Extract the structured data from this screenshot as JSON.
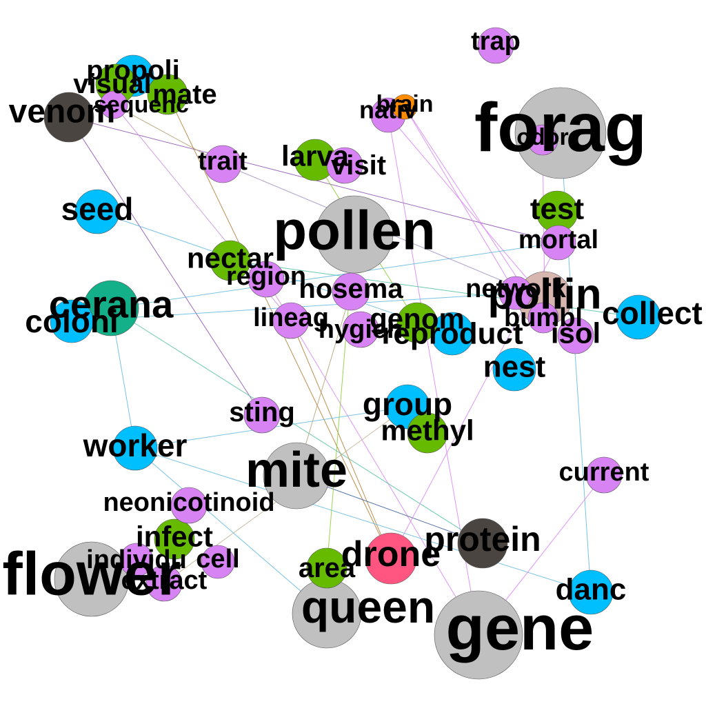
{
  "title": "",
  "palette": {
    "gray": "#c0c0c0",
    "pink": "#d883f3",
    "blue": "#00bfff",
    "green": "#66bb00",
    "dark": "#4a4540",
    "teal": "#14b08a",
    "orange": "#ff8c00",
    "rose": "#ff5580",
    "mauve": "#d8b6b0"
  },
  "nodes": [
    {
      "id": "forag",
      "label": "forag",
      "color": "gray"
    },
    {
      "id": "pollen",
      "label": "pollen",
      "color": "gray"
    },
    {
      "id": "mite",
      "label": "mite",
      "color": "gray"
    },
    {
      "id": "flower",
      "label": "flower",
      "color": "gray"
    },
    {
      "id": "queen",
      "label": "queen",
      "color": "gray"
    },
    {
      "id": "gene",
      "label": "gene",
      "color": "gray"
    },
    {
      "id": "venom",
      "label": "venom",
      "color": "dark"
    },
    {
      "id": "protein",
      "label": "protein",
      "color": "dark"
    },
    {
      "id": "drone",
      "label": "drone",
      "color": "rose"
    },
    {
      "id": "cerana",
      "label": "cerana",
      "color": "teal"
    },
    {
      "id": "brain",
      "label": "brain",
      "color": "orange"
    },
    {
      "id": "pollin",
      "label": "pollin",
      "color": "mauve"
    },
    {
      "id": "propoli",
      "label": "propoli",
      "color": "blue"
    },
    {
      "id": "visual",
      "label": "visual",
      "color": "green"
    },
    {
      "id": "mate",
      "label": "mate",
      "color": "green"
    },
    {
      "id": "sequenc",
      "label": "sequenc",
      "color": "pink"
    },
    {
      "id": "trap",
      "label": "trap",
      "color": "pink"
    },
    {
      "id": "nativ",
      "label": "nativ",
      "color": "pink"
    },
    {
      "id": "odor",
      "label": "odor",
      "color": "pink"
    },
    {
      "id": "trait",
      "label": "trait",
      "color": "pink"
    },
    {
      "id": "larva",
      "label": "larva",
      "color": "green"
    },
    {
      "id": "visit",
      "label": "visit",
      "color": "pink"
    },
    {
      "id": "seed",
      "label": "seed",
      "color": "blue"
    },
    {
      "id": "test",
      "label": "test",
      "color": "green"
    },
    {
      "id": "mortal",
      "label": "mortal",
      "color": "pink"
    },
    {
      "id": "nectar",
      "label": "nectar",
      "color": "green"
    },
    {
      "id": "region",
      "label": "region",
      "color": "pink"
    },
    {
      "id": "nosema",
      "label": "nosema",
      "color": "pink"
    },
    {
      "id": "network",
      "label": "network",
      "color": "pink"
    },
    {
      "id": "collect",
      "label": "collect",
      "color": "blue"
    },
    {
      "id": "colon",
      "label": "coloni",
      "color": "blue"
    },
    {
      "id": "lineag",
      "label": "lineag",
      "color": "pink"
    },
    {
      "id": "hygien",
      "label": "hygien",
      "color": "pink"
    },
    {
      "id": "genom",
      "label": "genom",
      "color": "green"
    },
    {
      "id": "reproduct",
      "label": "reproduct",
      "color": "blue"
    },
    {
      "id": "bumbl",
      "label": "bumbl",
      "color": "pink"
    },
    {
      "id": "isol",
      "label": "isol",
      "color": "pink"
    },
    {
      "id": "nest",
      "label": "nest",
      "color": "blue"
    },
    {
      "id": "group",
      "label": "group",
      "color": "blue"
    },
    {
      "id": "sting",
      "label": "sting",
      "color": "pink"
    },
    {
      "id": "methyl",
      "label": "methyl",
      "color": "green"
    },
    {
      "id": "worker",
      "label": "worker",
      "color": "blue"
    },
    {
      "id": "current",
      "label": "current",
      "color": "pink"
    },
    {
      "id": "neonicotinoid",
      "label": "neonicotinoid",
      "color": "pink"
    },
    {
      "id": "infect",
      "label": "infect",
      "color": "green"
    },
    {
      "id": "individu",
      "label": "individu",
      "color": "pink"
    },
    {
      "id": "cell",
      "label": "cell",
      "color": "pink"
    },
    {
      "id": "extract",
      "label": "extract",
      "color": "pink"
    },
    {
      "id": "area",
      "label": "area",
      "color": "green"
    },
    {
      "id": "danc",
      "label": "danc",
      "color": "blue"
    }
  ],
  "edges": [
    {
      "source": "venom",
      "target": "mortal",
      "color": "#8a4fb0"
    },
    {
      "source": "venom",
      "target": "sting",
      "color": "#8a4fb0"
    },
    {
      "source": "sequenc",
      "target": "lineag",
      "color": "#c98fe0"
    },
    {
      "source": "sequenc",
      "target": "trait",
      "color": "#b0a070"
    },
    {
      "source": "mate",
      "target": "drone",
      "color": "#b07a30"
    },
    {
      "source": "nativ",
      "target": "gene",
      "color": "#d883f3"
    },
    {
      "source": "nativ",
      "target": "isol",
      "color": "#d883f3"
    },
    {
      "source": "brain",
      "target": "network",
      "color": "#d883f3"
    },
    {
      "source": "brain",
      "target": "bumbl",
      "color": "#d883f3"
    },
    {
      "source": "odor",
      "target": "pollin",
      "color": "#d883f3"
    },
    {
      "source": "forag",
      "target": "danc",
      "color": "#60b8e0"
    },
    {
      "source": "larva",
      "target": "genom",
      "color": "#88cc33"
    },
    {
      "source": "seed",
      "target": "reproduct",
      "color": "#60b8e0"
    },
    {
      "source": "nectar",
      "target": "collect",
      "color": "#50c0a0"
    },
    {
      "source": "region",
      "target": "gene",
      "color": "#d883f3"
    },
    {
      "source": "colon",
      "target": "network",
      "color": "#60b8e0"
    },
    {
      "source": "cerana",
      "target": "mortal",
      "color": "#60b8e0"
    },
    {
      "source": "cerana",
      "target": "protein",
      "color": "#50c0a0"
    },
    {
      "source": "cerana",
      "target": "worker",
      "color": "#60b8e0"
    },
    {
      "source": "lineag",
      "target": "drone",
      "color": "#b07a30"
    },
    {
      "source": "group",
      "target": "worker",
      "color": "#60b8e0"
    },
    {
      "source": "group",
      "target": "extract",
      "color": "#c0b090"
    },
    {
      "source": "worker",
      "target": "danc",
      "color": "#60b8e0"
    },
    {
      "source": "worker",
      "target": "queen",
      "color": "#60b8e0"
    },
    {
      "source": "mite",
      "target": "protein",
      "color": "#4060a0"
    },
    {
      "source": "current",
      "target": "gene",
      "color": "#d883f3"
    },
    {
      "source": "mortal",
      "target": "drone",
      "color": "#d883f3"
    },
    {
      "source": "pollen",
      "target": "area",
      "color": "#88cc33"
    },
    {
      "source": "trait",
      "target": "pollin",
      "color": "#a090c0"
    },
    {
      "source": "nosema",
      "target": "mite",
      "color": "#b0a070"
    }
  ]
}
